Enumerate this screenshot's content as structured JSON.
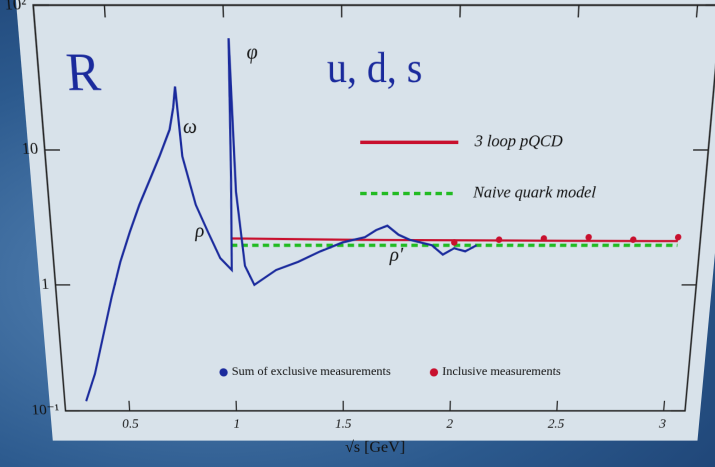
{
  "chart_data": {
    "type": "line",
    "title": "R",
    "subtitle": "u, d, s",
    "x_label": "√s [GeV]",
    "log_y": true,
    "xlim": [
      0.2,
      3.1
    ],
    "ylim": [
      0.1,
      100
    ],
    "xticks": [
      0.5,
      1,
      1.5,
      2,
      2.5,
      3
    ],
    "yticks": [
      {
        "value": 0.1,
        "label": "10⁻¹"
      },
      1,
      10,
      {
        "value": 100,
        "label": "10²"
      }
    ],
    "annotations": [
      "ρ",
      "ω",
      "φ",
      "ρ'"
    ],
    "series": [
      {
        "name": "3 loop pQCD",
        "color": "#c8102e",
        "style": "line",
        "x": [
          1.0,
          1.5,
          2.0,
          2.5,
          3.0
        ],
        "values": [
          2.25,
          2.2,
          2.18,
          2.16,
          2.15
        ]
      },
      {
        "name": "Naive quark model",
        "color": "#22bb22",
        "style": "dashed",
        "x": [
          1.0,
          3.0
        ],
        "values": [
          2,
          2
        ]
      },
      {
        "name": "Sum of exclusive measurements",
        "color": "#1a2a9c",
        "style": "line",
        "x": [
          0.3,
          0.35,
          0.4,
          0.45,
          0.5,
          0.55,
          0.6,
          0.65,
          0.7,
          0.75,
          0.77,
          0.782,
          0.8,
          0.85,
          0.9,
          0.95,
          1.0,
          1.01,
          1.019,
          1.03,
          1.06,
          1.1,
          1.2,
          1.3,
          1.4,
          1.5,
          1.6,
          1.65,
          1.7,
          1.75,
          1.8,
          1.9,
          1.95,
          2.0,
          2.05,
          2.1
        ],
        "values": [
          0.12,
          0.2,
          0.4,
          0.8,
          1.5,
          2.5,
          4,
          6,
          9,
          14,
          20,
          28,
          9,
          4,
          2.5,
          1.6,
          1.3,
          6,
          60,
          5,
          1.4,
          1.0,
          1.3,
          1.5,
          1.8,
          2.1,
          2.3,
          2.6,
          2.8,
          2.4,
          2.2,
          2.0,
          1.7,
          1.9,
          1.8,
          2.0
        ]
      },
      {
        "name": "Inclusive measurements",
        "color": "#c8102e",
        "style": "points",
        "x": [
          2.0,
          2.2,
          2.4,
          2.6,
          2.8,
          3.0
        ],
        "values": [
          2.1,
          2.2,
          2.25,
          2.3,
          2.2,
          2.3
        ]
      }
    ]
  }
}
